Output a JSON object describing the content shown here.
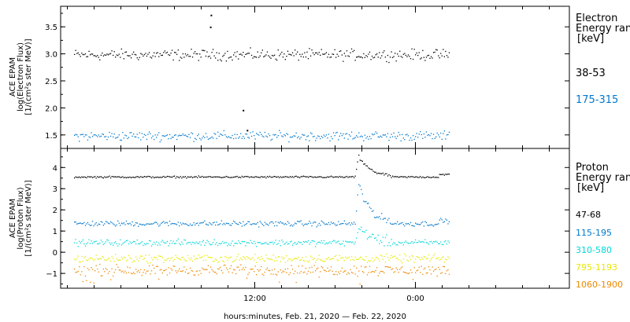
{
  "chart_data": [
    {
      "type": "scatter",
      "panel": "electron",
      "ylabel_lines": [
        "ACE EPAM",
        "log(Electron Flux)",
        "[1/(cm²s ster MeV)]"
      ],
      "ylim": [
        1.25,
        3.88
      ],
      "yticks": [
        1.5,
        2.0,
        2.5,
        3.0,
        3.5
      ],
      "yticklabels": [
        "1.5",
        "2.0",
        "2.5",
        "3.0",
        "3.5"
      ],
      "legend_title": "Electron",
      "legend_subtitle": "Energy ran",
      "legend_units": "[keV]",
      "series": [
        {
          "name": "38-53",
          "color": "#000000",
          "baseline": 2.98,
          "noise": 0.07,
          "t_range": [
            -25.5,
            2.5
          ],
          "extra_points": [
            [
              -15.3,
              3.71
            ],
            [
              -15.35,
              3.49
            ],
            [
              -12.9,
              1.95
            ],
            [
              -12.6,
              1.58
            ]
          ]
        },
        {
          "name": "175-315",
          "color": "#0077cc",
          "baseline": 1.48,
          "noise": 0.06,
          "t_range": [
            -25.5,
            2.5
          ],
          "extra_points": []
        }
      ]
    },
    {
      "type": "scatter",
      "panel": "proton",
      "ylabel_lines": [
        "ACE EPAM",
        "log(Proton Flux)",
        "[1/(cm²s ster MeV)]"
      ],
      "ylim": [
        -1.7,
        4.9
      ],
      "yticks": [
        -1,
        0,
        1,
        2,
        3,
        4
      ],
      "yticklabels": [
        "−1",
        "0",
        "1",
        "2",
        "3",
        "4"
      ],
      "legend_title": "Proton",
      "legend_subtitle": "Energy ran",
      "legend_units": "[keV]",
      "event_t": -4.3,
      "series": [
        {
          "name": "47-68",
          "color": "#000000",
          "baseline": 3.55,
          "noise": 0.03,
          "t_range": [
            -25.5,
            2.5
          ],
          "spike": 1.0
        },
        {
          "name": "115-195",
          "color": "#0077cc",
          "baseline": 1.35,
          "noise": 0.09,
          "t_range": [
            -25.5,
            2.5
          ],
          "spike": 1.9
        },
        {
          "name": "310-580",
          "color": "#00d8d8",
          "baseline": 0.45,
          "noise": 0.1,
          "t_range": [
            -25.5,
            2.5
          ],
          "spike": 0.8
        },
        {
          "name": "795-1193",
          "color": "#e8e800",
          "baseline": -0.3,
          "noise": 0.13,
          "t_range": [
            -25.5,
            2.5
          ],
          "spike": 0.0
        },
        {
          "name": "1060-1900",
          "color": "#ee8800",
          "baseline": -0.85,
          "noise": 0.17,
          "t_range": [
            -25.5,
            2.5
          ],
          "spike": 0.0
        }
      ]
    }
  ],
  "x_axis": {
    "xlim": [
      -26.5,
      11.5
    ],
    "minor_step": 2,
    "major_ticks": [
      -12,
      0
    ],
    "tick_labels": [
      "12:00",
      "0:00"
    ],
    "xlabel": "hours:minutes, Feb. 21, 2020 — Feb. 22, 2020"
  }
}
